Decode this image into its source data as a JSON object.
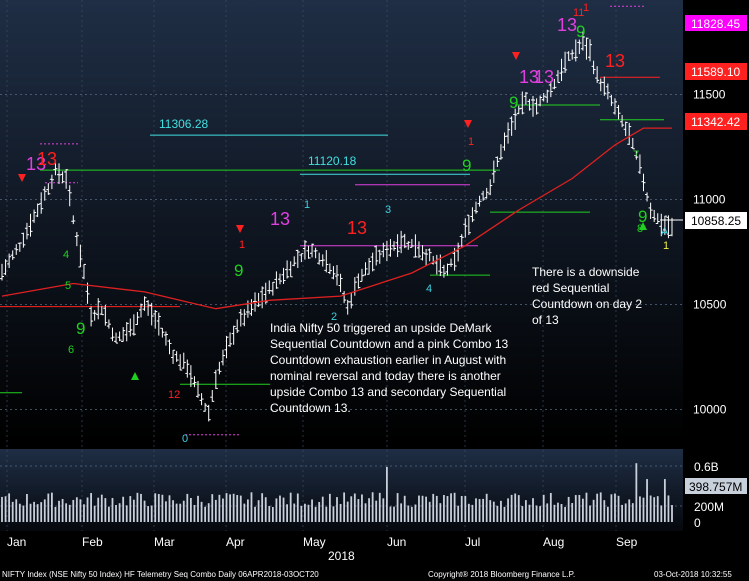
{
  "chart_data": {
    "type": "line",
    "title": "",
    "xlabel": "2018",
    "ylabel": "",
    "ylim": [
      9850,
      11950
    ],
    "x_months": [
      "Jan",
      "Feb",
      "Mar",
      "Apr",
      "May",
      "Jun",
      "Jul",
      "Aug",
      "Sep"
    ],
    "y_ticks": [
      10000,
      10500,
      11000,
      11500
    ],
    "price_series_name": "",
    "price_approx": [
      [
        0,
        10650
      ],
      [
        5,
        10780
      ],
      [
        10,
        10950
      ],
      [
        15,
        11130
      ],
      [
        18,
        11100
      ],
      [
        20,
        10900
      ],
      [
        23,
        10650
      ],
      [
        25,
        10450
      ],
      [
        28,
        10480
      ],
      [
        32,
        10330
      ],
      [
        36,
        10380
      ],
      [
        40,
        10500
      ],
      [
        44,
        10400
      ],
      [
        48,
        10260
      ],
      [
        52,
        10200
      ],
      [
        55,
        10080
      ],
      [
        58,
        9980
      ],
      [
        60,
        10150
      ],
      [
        63,
        10280
      ],
      [
        66,
        10400
      ],
      [
        70,
        10480
      ],
      [
        74,
        10550
      ],
      [
        78,
        10620
      ],
      [
        82,
        10700
      ],
      [
        86,
        10760
      ],
      [
        90,
        10720
      ],
      [
        94,
        10640
      ],
      [
        97,
        10480
      ],
      [
        100,
        10620
      ],
      [
        104,
        10700
      ],
      [
        108,
        10760
      ],
      [
        112,
        10800
      ],
      [
        116,
        10780
      ],
      [
        120,
        10720
      ],
      [
        124,
        10650
      ],
      [
        127,
        10700
      ],
      [
        130,
        10850
      ],
      [
        134,
        11000
      ],
      [
        137,
        11060
      ],
      [
        140,
        11230
      ],
      [
        144,
        11380
      ],
      [
        147,
        11470
      ],
      [
        150,
        11440
      ],
      [
        154,
        11520
      ],
      [
        157,
        11620
      ],
      [
        160,
        11690
      ],
      [
        163,
        11740
      ],
      [
        165,
        11700
      ],
      [
        167,
        11580
      ],
      [
        170,
        11500
      ],
      [
        173,
        11400
      ],
      [
        176,
        11300
      ],
      [
        179,
        11150
      ],
      [
        182,
        10950
      ],
      [
        185,
        10880
      ],
      [
        188,
        10858
      ]
    ],
    "moving_average_approx": [
      [
        0,
        10540
      ],
      [
        20,
        10600
      ],
      [
        40,
        10560
      ],
      [
        60,
        10480
      ],
      [
        75,
        10520
      ],
      [
        95,
        10540
      ],
      [
        115,
        10650
      ],
      [
        130,
        10780
      ],
      [
        145,
        10950
      ],
      [
        160,
        11100
      ],
      [
        172,
        11260
      ],
      [
        180,
        11340
      ],
      [
        188,
        11340
      ]
    ],
    "volume_axis": {
      "ticks": [
        "0.6B",
        "200M",
        "0"
      ],
      "current": "398.757M"
    },
    "price_labels": [
      {
        "text": "11828.45",
        "color": "#ff00ff"
      },
      {
        "text": "11589.10",
        "color": "#ff2020"
      },
      {
        "text": "11342.42",
        "color": "#ff2020"
      },
      {
        "text": "10858.25",
        "color": "#000000",
        "bg": "#ffffff"
      }
    ],
    "level_labels": [
      {
        "text": "11306.28",
        "value": 11306.28,
        "color": "#40e0e0"
      },
      {
        "text": "11120.18",
        "value": 11120.18,
        "color": "#40e0e0"
      }
    ],
    "count_labels": [
      "13",
      "13",
      "13",
      "13",
      "13",
      "13",
      "13",
      "13",
      "9",
      "9",
      "9",
      "9",
      "9",
      "9",
      "8",
      "1",
      "1",
      "1",
      "1",
      "2",
      "3",
      "4",
      "4",
      "5",
      "6",
      "7",
      "0",
      "11",
      "12",
      "A",
      "1"
    ]
  },
  "annotations": {
    "left_note": "India Nifty 50 triggered an upside DeMark Sequential Countdown and a pink Combo 13 Countdown exhaustion earlier in August with nominal reversal and today there is another upside Combo 13 and secondary Sequential Countdown 13.",
    "right_note": "There is a downside red Sequential Countdown on day 2 of 13"
  },
  "footer": {
    "left": "NIFTY Index (NSE Nifty 50 Index) HF Telemetry Seq Combo  Daily 06APR2018-03OCT20",
    "center": "Copyright® 2018 Bloomberg Finance L.P.",
    "right": "03-Oct-2018 10:32:55"
  },
  "colors": {
    "bg_top": "#1f2e45",
    "bg_bottom": "#000000",
    "price_bar": "#ffffff",
    "moving_average": "#e02020",
    "green": "#20d020",
    "red": "#ff2020",
    "pink": "#e040e0",
    "cyan": "#40d0e0",
    "yellow": "#f0f040"
  }
}
